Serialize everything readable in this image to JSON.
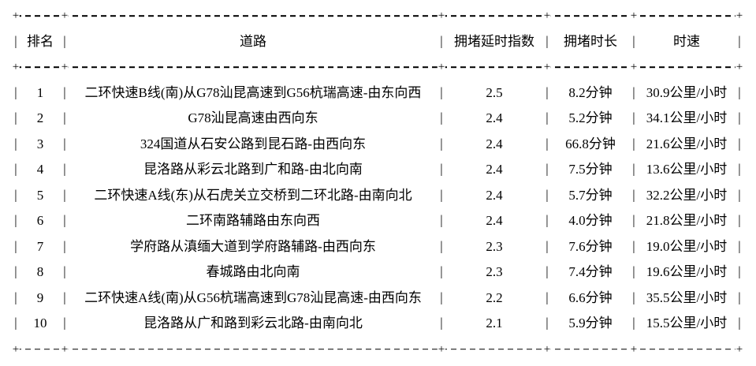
{
  "table": {
    "headers": [
      "排名",
      "道路",
      "拥堵延时指数",
      "拥堵时长",
      "时速"
    ],
    "border": {
      "horizontal": "-",
      "vertical": "|",
      "cross": "+"
    },
    "rows": [
      {
        "rank": "1",
        "road": "二环快速B线(南)从G78汕昆高速到G56杭瑞高速-由东向西",
        "index": "2.5",
        "duration": "8.2分钟",
        "speed": "30.9公里/小时"
      },
      {
        "rank": "2",
        "road": "G78汕昆高速由西向东",
        "index": "2.4",
        "duration": "5.2分钟",
        "speed": "34.1公里/小时"
      },
      {
        "rank": "3",
        "road": "324国道从石安公路到昆石路-由西向东",
        "index": "2.4",
        "duration": "66.8分钟",
        "speed": "21.6公里/小时"
      },
      {
        "rank": "4",
        "road": "昆洛路从彩云北路到广和路-由北向南",
        "index": "2.4",
        "duration": "7.5分钟",
        "speed": "13.6公里/小时"
      },
      {
        "rank": "5",
        "road": "二环快速A线(东)从石虎关立交桥到二环北路-由南向北",
        "index": "2.4",
        "duration": "5.7分钟",
        "speed": "32.2公里/小时"
      },
      {
        "rank": "6",
        "road": "二环南路辅路由东向西",
        "index": "2.4",
        "duration": "4.0分钟",
        "speed": "21.8公里/小时"
      },
      {
        "rank": "7",
        "road": "学府路从滇缅大道到学府路辅路-由西向东",
        "index": "2.3",
        "duration": "7.6分钟",
        "speed": "19.0公里/小时"
      },
      {
        "rank": "8",
        "road": "春城路由北向南",
        "index": "2.3",
        "duration": "7.4分钟",
        "speed": "19.6公里/小时"
      },
      {
        "rank": "9",
        "road": "二环快速A线(南)从G56杭瑞高速到G78汕昆高速-由西向东",
        "index": "2.2",
        "duration": "6.6分钟",
        "speed": "35.5公里/小时"
      },
      {
        "rank": "10",
        "road": "昆洛路从广和路到彩云北路-由南向北",
        "index": "2.1",
        "duration": "5.9分钟",
        "speed": "15.5公里/小时"
      }
    ]
  },
  "colors": {
    "text": "#000000",
    "background": "#ffffff",
    "border": "#000000"
  }
}
